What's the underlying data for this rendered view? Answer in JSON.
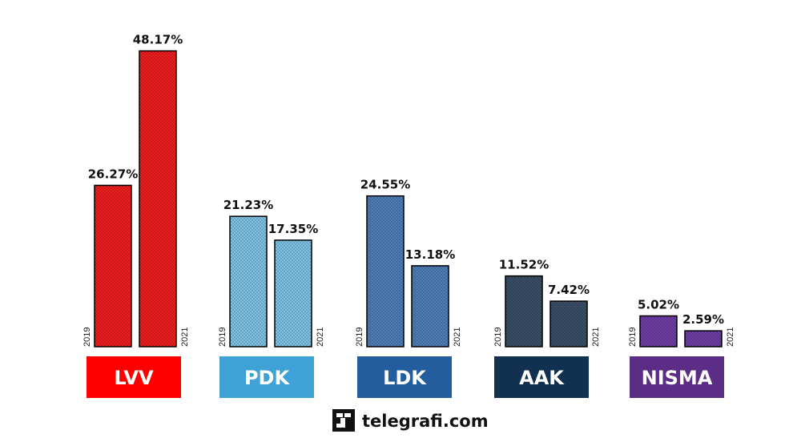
{
  "chart_data": {
    "type": "bar",
    "categories": [
      "LVV",
      "PDK",
      "LDK",
      "AAK",
      "NISMA"
    ],
    "series": [
      {
        "name": "2019",
        "values": [
          26.27,
          21.23,
          24.55,
          11.52,
          5.02
        ]
      },
      {
        "name": "2021",
        "values": [
          48.17,
          17.35,
          13.18,
          7.42,
          2.59
        ]
      }
    ],
    "value_labels": [
      [
        "26.27%",
        "48.17%"
      ],
      [
        "21.23%",
        "17.35%"
      ],
      [
        "24.55%",
        "13.18%"
      ],
      [
        "11.52%",
        "7.42%"
      ],
      [
        "5.02%",
        "2.59%"
      ]
    ],
    "title": "",
    "xlabel": "",
    "ylabel": "",
    "ylim": [
      0,
      50
    ],
    "grid": false,
    "legend": "none",
    "party_colors": [
      "#ff0000",
      "#3fa2d6",
      "#245d9e",
      "#12304f",
      "#5c2d86"
    ],
    "bar_fill_colors": [
      "#f01e1e",
      "#7ec4e6",
      "#4f7fb8",
      "#3a4f68",
      "#6e3ea6"
    ]
  },
  "brand": {
    "name": "telegrafi.com",
    "icon": "telegrafi-logo-icon"
  }
}
